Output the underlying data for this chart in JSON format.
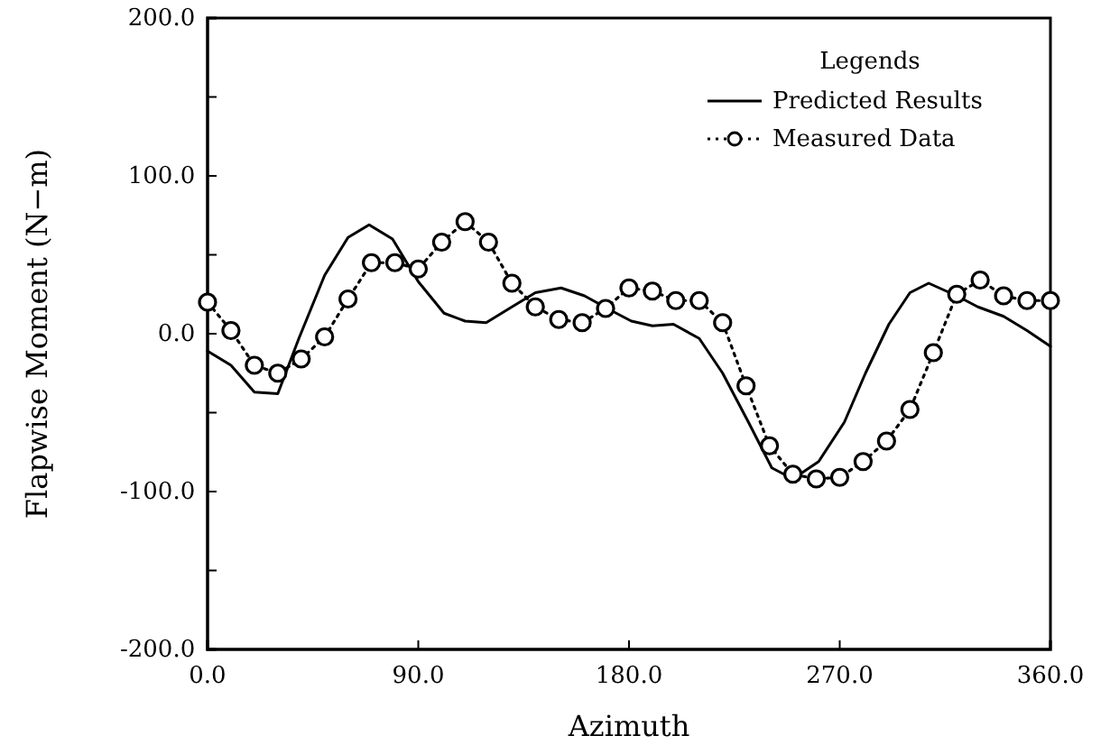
{
  "chart_data": {
    "type": "line",
    "xlabel": "Azimuth",
    "ylabel": "Flapwise Moment (N−m)",
    "legend_title": "Legends",
    "legend": "top right",
    "grid": false,
    "xlim": [
      0,
      360
    ],
    "xticks": [
      {
        "value": 0,
        "label": "0.0"
      },
      {
        "value": 90,
        "label": "90.0"
      },
      {
        "value": 180,
        "label": "180.0"
      },
      {
        "value": 270,
        "label": "270.0"
      },
      {
        "value": 360,
        "label": "360.0"
      }
    ],
    "ylim": [
      -200,
      200
    ],
    "yticks": [
      {
        "value": -200,
        "label": "-200.0"
      },
      {
        "value": -150,
        "label": null
      },
      {
        "value": -100,
        "label": "-100.0"
      },
      {
        "value": -50,
        "label": null
      },
      {
        "value": 0,
        "label": "0.0"
      },
      {
        "value": 50,
        "label": null
      },
      {
        "value": 100,
        "label": "100.0"
      },
      {
        "value": 150,
        "label": null
      },
      {
        "value": 200,
        "label": "200.0"
      }
    ],
    "series": [
      {
        "name": "Predicted Results",
        "color": "#000000",
        "marker": "none",
        "line_style": "solid",
        "x": [
          0,
          10,
          20,
          30,
          39,
          50,
          60,
          69,
          79,
          90,
          101,
          110,
          119,
          130,
          140,
          151,
          161,
          172,
          181,
          190,
          199,
          210,
          220,
          231,
          241,
          250,
          261,
          272,
          281,
          291,
          300,
          308,
          320,
          329,
          340,
          350,
          360
        ],
        "values": [
          -11,
          -20,
          -37,
          -38,
          -3,
          37,
          61,
          69,
          60,
          33,
          13,
          8,
          7,
          17,
          26,
          29,
          24,
          15,
          8,
          5,
          6,
          -3,
          -25,
          -56,
          -85,
          -92,
          -81,
          -56,
          -25,
          6,
          26,
          32,
          24,
          17,
          11,
          2,
          -8
        ]
      },
      {
        "name": "Measured Data",
        "color": "#000000",
        "marker": "circle",
        "line_style": "dotted",
        "x": [
          0,
          10,
          20,
          30,
          40,
          50,
          60,
          70,
          80,
          90,
          100,
          110,
          120,
          130,
          140,
          150,
          160,
          170,
          180,
          190,
          200,
          210,
          220,
          230,
          240,
          250,
          260,
          270,
          280,
          290,
          300,
          310,
          320,
          330,
          340,
          350,
          360
        ],
        "values": [
          20,
          2,
          -20,
          -25,
          -16,
          -2,
          22,
          45,
          45,
          41,
          58,
          71,
          58,
          32,
          17,
          9,
          7,
          16,
          29,
          27,
          21,
          21,
          7,
          -33,
          -71,
          -89,
          -92,
          -91,
          -81,
          -68,
          -48,
          -12,
          25,
          34,
          24,
          21,
          21
        ]
      }
    ]
  }
}
